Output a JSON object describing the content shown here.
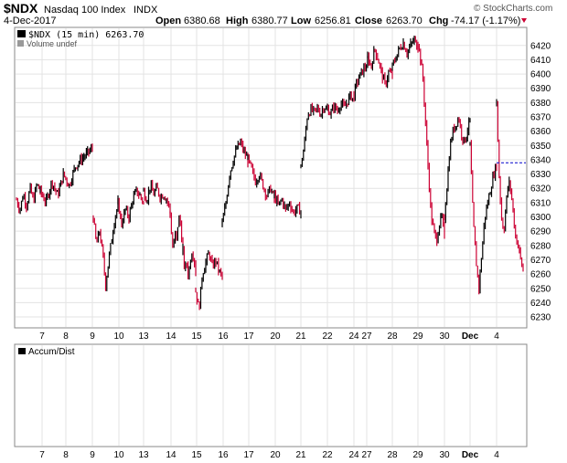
{
  "header": {
    "symbol": "$NDX",
    "name": "Nasdaq 100 Index",
    "exchange": "INDX",
    "date": "4-Dec-2017",
    "watermark": "© StockCharts.com",
    "quote": {
      "open_label": "Open",
      "open": "6380.68",
      "high_label": "High",
      "high": "6380.77",
      "low_label": "Low",
      "low": "6256.81",
      "close_label": "Close",
      "close": "6263.70",
      "chg_label": "Chg",
      "chg": "-74.17 (-1.17%)"
    }
  },
  "legend": {
    "price": "$NDX (15 min) 6263.70",
    "volume": "Volume undef"
  },
  "lower_panel": {
    "label": "Accum/Dist"
  },
  "colors": {
    "up": "#000000",
    "down": "#cc0033",
    "grid": "#e3e3e3",
    "dashed": "#0000cc",
    "frame": "#888888"
  },
  "chart_data": {
    "type": "bar",
    "interval": "15 min",
    "ylim": [
      6223,
      6432
    ],
    "y_ticks": [
      6230,
      6240,
      6250,
      6260,
      6270,
      6280,
      6290,
      6300,
      6310,
      6320,
      6330,
      6340,
      6350,
      6360,
      6370,
      6380,
      6390,
      6400,
      6410,
      6420
    ],
    "x_ticks": [
      "7",
      "8",
      "9",
      "10",
      "13",
      "14",
      "15",
      "16",
      "17",
      "20",
      "21",
      "22",
      "24",
      "27",
      "28",
      "29",
      "30",
      "Dec",
      "4"
    ],
    "prior_close": 6337.87,
    "sessions": [
      {
        "day": "6",
        "path": [
          6312,
          6305,
          6316,
          6308,
          6320,
          6311,
          6323,
          6318
        ]
      },
      {
        "day": "7",
        "path": [
          6318,
          6310,
          6325,
          6315,
          6330,
          6322,
          6335,
          6340,
          6344,
          6348
        ]
      },
      {
        "day": "8",
        "path": [
          6300,
          6280,
          6290,
          6275,
          6252,
          6270,
          6285,
          6300,
          6308
        ]
      },
      {
        "day": "9",
        "path": [
          6310,
          6295,
          6305,
          6300,
          6312,
          6318,
          6315,
          6310
        ]
      },
      {
        "day": "10",
        "path": [
          6318,
          6312,
          6322,
          6316,
          6320,
          6314,
          6316,
          6312,
          6305
        ]
      },
      {
        "day": "13",
        "path": [
          6302,
          6285,
          6275,
          6290,
          6283,
          6297,
          6300,
          6288,
          6280
        ]
      },
      {
        "day": "14",
        "path": [
          6276,
          6262,
          6268,
          6258,
          6270,
          6276,
          6272,
          6262
        ]
      },
      {
        "day": "15",
        "path": [
          6248,
          6235,
          6260,
          6268,
          6275,
          6265,
          6270,
          6262,
          6258
        ]
      },
      {
        "day": "16",
        "path": [
          6295,
          6310,
          6330,
          6340,
          6348,
          6352,
          6345,
          6340
        ]
      },
      {
        "day": "17",
        "path": [
          6340,
          6333,
          6325,
          6330,
          6322,
          6315,
          6320,
          6312
        ]
      },
      {
        "day": "20",
        "path": [
          6315,
          6308,
          6312,
          6305,
          6310,
          6303,
          6306,
          6304
        ]
      },
      {
        "day": "21",
        "path": [
          6335,
          6350,
          6372,
          6375,
          6373,
          6376,
          6372,
          6378,
          6374
        ]
      },
      {
        "day": "22",
        "path": [
          6376,
          6372,
          6378,
          6374,
          6380,
          6376,
          6381,
          6385,
          6382
        ]
      },
      {
        "day": "24",
        "path": [
          6386,
          6395,
          6400,
          6404,
          6407
        ]
      },
      {
        "day": "27",
        "path": [
          6412,
          6405,
          6418,
          6410,
          6400,
          6392,
          6402,
          6398
        ]
      },
      {
        "day": "28",
        "path": [
          6405,
          6412,
          6418,
          6422,
          6415,
          6420,
          6424,
          6418
        ]
      },
      {
        "day": "29",
        "path": [
          6422,
          6410,
          6395,
          6360,
          6330,
          6300,
          6290,
          6283,
          6295,
          6300,
          6285
        ]
      },
      {
        "day": "30",
        "path": [
          6300,
          6325,
          6350,
          6360,
          6365,
          6370,
          6358,
          6352,
          6360,
          6368
        ]
      },
      {
        "day": "1",
        "path": [
          6350,
          6300,
          6270,
          6250,
          6275,
          6300,
          6310,
          6320,
          6330,
          6336
        ]
      },
      {
        "day": "4",
        "path": [
          6380,
          6330,
          6300,
          6290,
          6310,
          6325,
          6318,
          6300,
          6285,
          6280,
          6270,
          6262
        ]
      }
    ]
  }
}
